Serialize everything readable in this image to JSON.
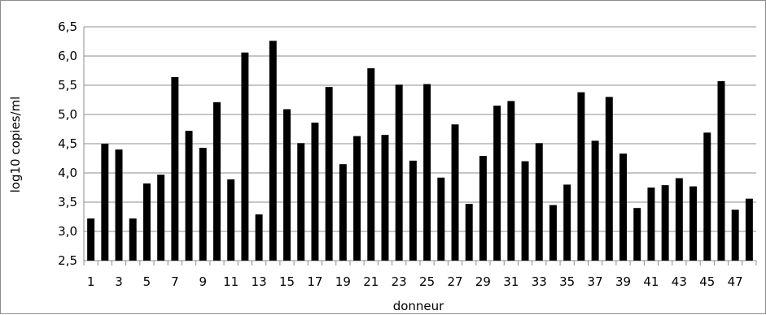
{
  "chart_data": {
    "type": "bar",
    "title": "",
    "xlabel": "donneur",
    "ylabel": "log10 copies/ml",
    "ylim": [
      2.5,
      6.5
    ],
    "yticks": [
      "2,5",
      "3,0",
      "3,5",
      "4,0",
      "4,5",
      "5,0",
      "5,5",
      "6,0",
      "6,5"
    ],
    "ytick_values": [
      2.5,
      3.0,
      3.5,
      4.0,
      4.5,
      5.0,
      5.5,
      6.0,
      6.5
    ],
    "grid": "horizontal",
    "legend": "none",
    "bar_color": "#000000",
    "grid_color": "#8c8c8c",
    "categories": [
      "1",
      "2",
      "3",
      "4",
      "5",
      "6",
      "7",
      "8",
      "9",
      "10",
      "11",
      "12",
      "13",
      "14",
      "15",
      "16",
      "17",
      "18",
      "19",
      "20",
      "21",
      "22",
      "23",
      "24",
      "25",
      "26",
      "27",
      "28",
      "29",
      "30",
      "31",
      "32",
      "33",
      "34",
      "35",
      "36",
      "37",
      "38",
      "39",
      "40",
      "41",
      "42",
      "43",
      "44",
      "45",
      "46",
      "47",
      "48"
    ],
    "xtick_labels": [
      "1",
      "3",
      "5",
      "7",
      "9",
      "11",
      "13",
      "15",
      "17",
      "19",
      "21",
      "23",
      "25",
      "27",
      "29",
      "31",
      "33",
      "35",
      "37",
      "39",
      "41",
      "43",
      "45",
      "47"
    ],
    "values": [
      3.22,
      4.5,
      4.4,
      3.22,
      3.82,
      3.97,
      5.64,
      4.72,
      4.43,
      5.21,
      3.89,
      6.06,
      3.29,
      6.26,
      5.09,
      4.51,
      4.86,
      5.47,
      4.15,
      4.63,
      5.79,
      4.65,
      5.51,
      4.21,
      5.52,
      3.92,
      4.83,
      3.47,
      4.29,
      5.15,
      5.23,
      4.2,
      4.51,
      3.45,
      3.8,
      5.38,
      4.55,
      5.3,
      4.33,
      3.4,
      3.75,
      3.79,
      3.91,
      3.77,
      4.69,
      5.57,
      3.37,
      3.56
    ]
  }
}
